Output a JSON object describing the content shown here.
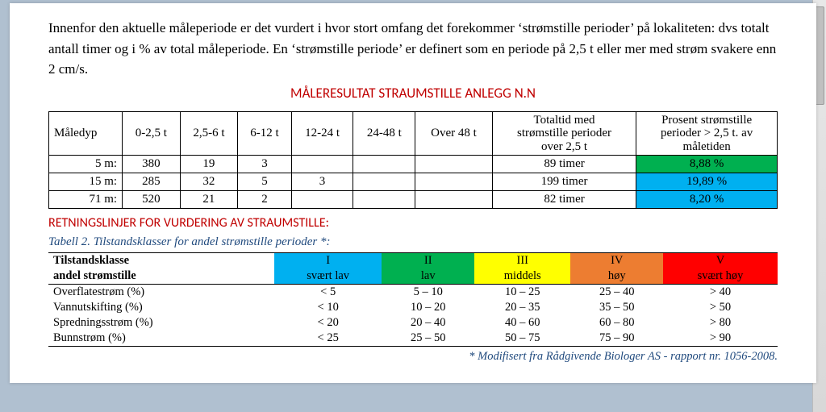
{
  "intro": "Innenfor den aktuelle måleperiode er det vurdert i hvor stort omfang det forekommer ‘strømstille perioder’ på lokaliteten: dvs totalt antall timer og i % av total måleperiode. En ‘strømstille periode’ er definert som en periode på 2,5 t eller mer med strøm svakere enn 2 cm/s.",
  "title": "MÅLERESULTAT STRAUMSTILLE ANLEGG N.N",
  "table1": {
    "headers": {
      "depth": "Måledyp",
      "c1": "0-2,5 t",
      "c2": "2,5-6 t",
      "c3": "6-12 t",
      "c4": "12-24 t",
      "c5": "24-48 t",
      "c6": "Over 48 t",
      "total_l1": "Totaltid med",
      "total_l2": "strømstille perioder",
      "total_l3": "over 2,5 t",
      "pct_l1": "Prosent strømstille",
      "pct_l2": "perioder > 2,5 t. av",
      "pct_l3": "måletiden"
    },
    "rows": [
      {
        "depth": "5 m:",
        "v": [
          "380",
          "19",
          "3",
          "",
          "",
          ""
        ],
        "total": "89 timer",
        "pct": "8,88 %",
        "pct_class": "bg-green"
      },
      {
        "depth": "15 m:",
        "v": [
          "285",
          "32",
          "5",
          "3",
          "",
          ""
        ],
        "total": "199 timer",
        "pct": "19,89 %",
        "pct_class": "bg-blue"
      },
      {
        "depth": "71 m:",
        "v": [
          "520",
          "21",
          "2",
          "",
          "",
          ""
        ],
        "total": "82 timer",
        "pct": "8,20 %",
        "pct_class": "bg-blue"
      }
    ]
  },
  "subtitle": "RETNINGSLINJER FOR VURDERING AV STRAUMSTILLE:",
  "caption": "Tabell 2. Tilstandsklasser for andel strømstille perioder *:",
  "table2": {
    "rowhdr_l1": "Tilstandsklasse",
    "rowhdr_l2": "andel strømstille",
    "classes": [
      {
        "num": "I",
        "name": "svært lav",
        "css": "cls-I"
      },
      {
        "num": "II",
        "name": "lav",
        "css": "cls-II"
      },
      {
        "num": "III",
        "name": "middels",
        "css": "cls-III"
      },
      {
        "num": "IV",
        "name": "høy",
        "css": "cls-IV"
      },
      {
        "num": "V",
        "name": "svært høy",
        "css": "cls-V"
      }
    ],
    "rows": [
      {
        "label": "Overflatestrøm (%)",
        "v": [
          "< 5",
          "5 – 10",
          "10 – 25",
          "25 – 40",
          "> 40"
        ]
      },
      {
        "label": "Vannutskifting (%)",
        "v": [
          "< 10",
          "10 – 20",
          "20 – 35",
          "35 – 50",
          "> 50"
        ]
      },
      {
        "label": "Spredningsstrøm (%)",
        "v": [
          "< 20",
          "20 – 40",
          "40 – 60",
          "60 – 80",
          "> 80"
        ]
      },
      {
        "label": "Bunnstrøm (%)",
        "v": [
          "< 25",
          "25 – 50",
          "50 – 75",
          "75 – 90",
          "> 90"
        ]
      }
    ]
  },
  "footnote": "* Modifisert fra Rådgivende Biologer AS - rapport nr. 1056-2008."
}
